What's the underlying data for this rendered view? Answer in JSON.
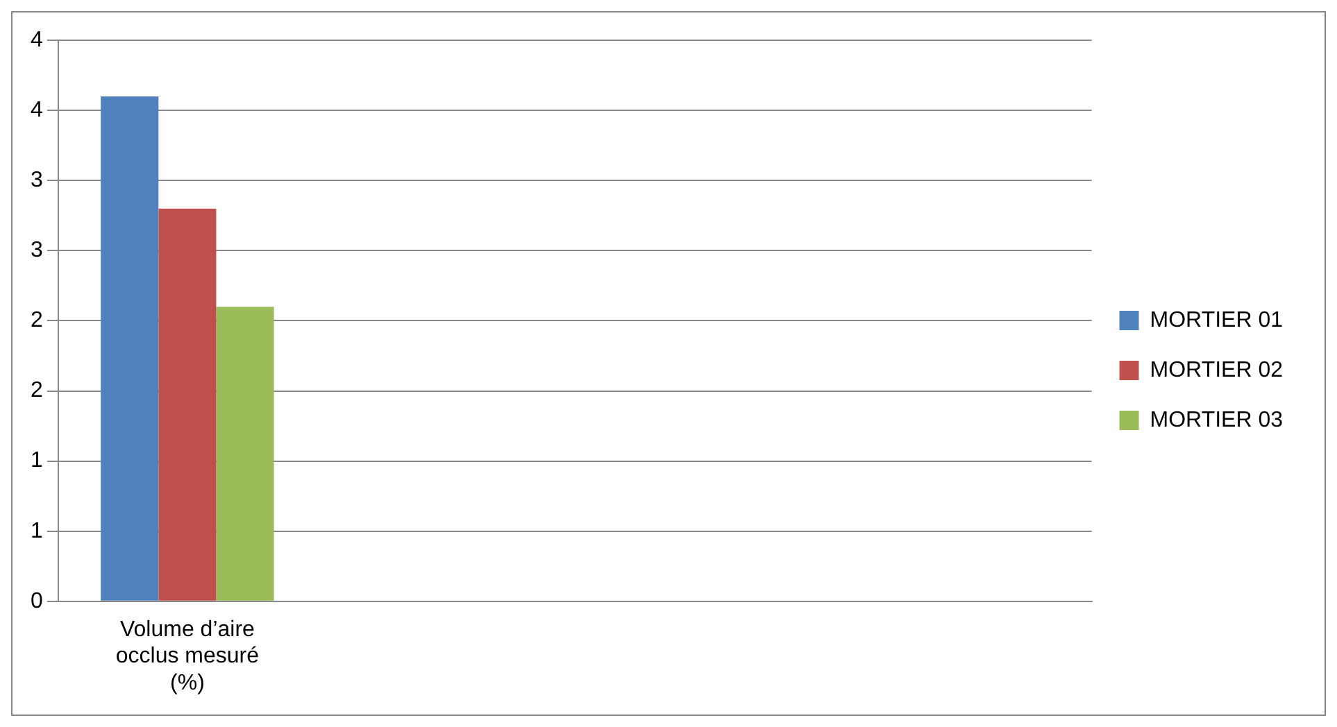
{
  "chart_data": {
    "type": "bar",
    "categories": [
      "Volume d’aire occlus mesuré (%)",
      null,
      null,
      null
    ],
    "series": [
      {
        "name": "MORTIER 01",
        "color": "#4f81bd",
        "values": [
          3.6,
          null,
          null,
          null
        ]
      },
      {
        "name": "MORTIER 02",
        "color": "#c0504d",
        "values": [
          2.8,
          null,
          null,
          null
        ]
      },
      {
        "name": "MORTIER 03",
        "color": "#9bbb59",
        "values": [
          2.1,
          null,
          null,
          null
        ]
      }
    ],
    "ylim": [
      0,
      4
    ],
    "yticks": [
      0,
      {
        "value": 0.5,
        "label": "1"
      },
      1,
      {
        "value": 1.5,
        "label": "2"
      },
      2,
      {
        "value": 2.5,
        "label": "3"
      },
      3,
      {
        "value": 3.5,
        "label": "4"
      },
      4
    ],
    "grid": "y",
    "legend": "right"
  }
}
